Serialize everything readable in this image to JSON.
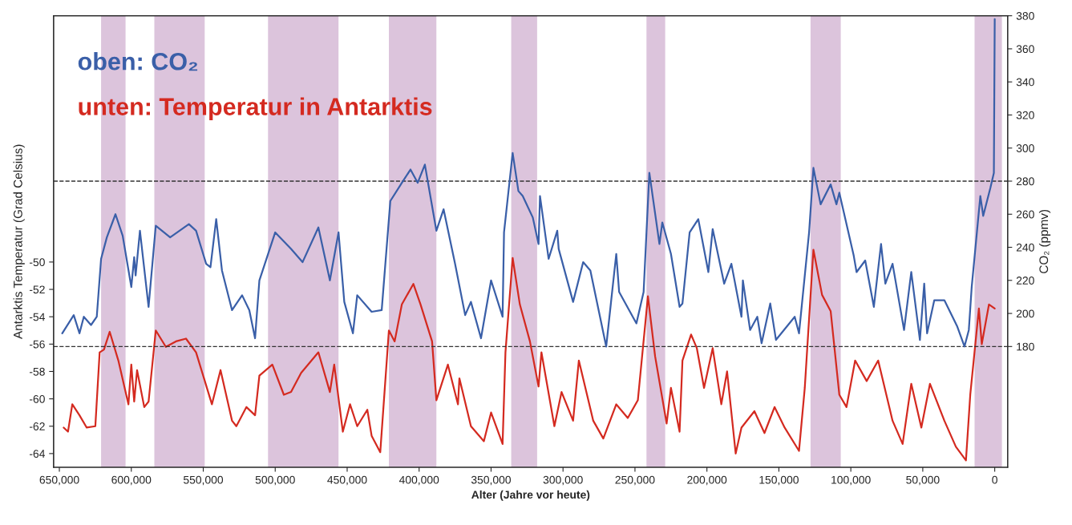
{
  "chart_data": {
    "type": "line",
    "title": "oben: CO₂",
    "subtitle": "unten: Temperatur in Antarktis",
    "xlabel": "Alter (Jahre vor heute)",
    "ylabel": "Antarktis Temperatur (Grad Celsius)",
    "y2label": "CO₂ (ppmv)",
    "xlim": [
      654000,
      -9000
    ],
    "xticks": [
      {
        "value": 650000,
        "label": "650,000"
      },
      {
        "value": 600000,
        "label": "600,000"
      },
      {
        "value": 550000,
        "label": "550,000"
      },
      {
        "value": 500000,
        "label": "500,000"
      },
      {
        "value": 450000,
        "label": "450,000"
      },
      {
        "value": 400000,
        "label": "400,000"
      },
      {
        "value": 350000,
        "label": "350,000"
      },
      {
        "value": 300000,
        "label": "300,000"
      },
      {
        "value": 250000,
        "label": "250,000"
      },
      {
        "value": 200000,
        "label": "200,000"
      },
      {
        "value": 150000,
        "label": "150,000"
      },
      {
        "value": 100000,
        "label": "100,000"
      },
      {
        "value": 50000,
        "label": "50,000"
      },
      0
    ],
    "ylim": [
      -65,
      -32
    ],
    "yticks": [
      -64,
      -62,
      -60,
      -58,
      -56,
      -54,
      -52,
      -50
    ],
    "y2lim": [
      107,
      380
    ],
    "y2ticks": [
      180,
      200,
      220,
      240,
      260,
      280,
      300,
      320,
      340,
      360,
      380
    ],
    "line_style": "solid",
    "grid": false,
    "legend": false,
    "series": [
      {
        "color": "#3a5fa8",
        "axis": "y2",
        "x": [
          648000,
          640000,
          636000,
          633000,
          628000,
          624000,
          621000,
          617000,
          611000,
          606000,
          600000,
          598000,
          597000,
          594000,
          588000,
          583000,
          573000,
          560000,
          555000,
          548000,
          545000,
          541000,
          537000,
          530000,
          523000,
          518000,
          514000,
          511000,
          500000,
          489000,
          481000,
          470000,
          462000,
          456000,
          452000,
          446000,
          443000,
          433000,
          426000,
          420000,
          412000,
          406000,
          401000,
          396000,
          388000,
          383000,
          375000,
          368000,
          364000,
          357000,
          350000,
          342000,
          341000,
          335000,
          331000,
          328000,
          321000,
          317000,
          316000,
          310000,
          304000,
          303000,
          293000,
          286000,
          281000,
          270000,
          263000,
          261000,
          249000,
          244000,
          240000,
          233000,
          231000,
          225000,
          219000,
          217000,
          212000,
          206000,
          199000,
          196000,
          188000,
          183000,
          176000,
          175000,
          170000,
          165000,
          162000,
          156000,
          152000,
          139000,
          136000,
          129000,
          126000,
          121000,
          114000,
          110000,
          108000,
          98000,
          96000,
          90000,
          84000,
          79000,
          76000,
          71000,
          63000,
          58000,
          52000,
          49000,
          47000,
          42000,
          35000,
          26000,
          21000,
          18000,
          16000,
          10000,
          8000,
          3000,
          600,
          0
        ],
        "values": [
          188,
          199,
          188,
          198,
          193,
          198,
          233,
          246,
          260,
          247,
          216,
          234,
          223,
          250,
          204,
          253,
          246,
          254,
          250,
          230,
          228,
          257,
          226,
          202,
          211,
          202,
          185,
          220,
          249,
          239,
          231,
          252,
          220,
          249,
          207,
          188,
          211,
          201,
          202,
          268,
          279,
          287,
          279,
          290,
          250,
          263,
          230,
          199,
          207,
          185,
          220,
          198,
          249,
          297,
          274,
          271,
          258,
          242,
          271,
          233,
          250,
          239,
          207,
          231,
          226,
          180,
          236,
          213,
          194,
          213,
          285,
          242,
          255,
          236,
          204,
          206,
          249,
          257,
          225,
          251,
          218,
          230,
          198,
          220,
          190,
          198,
          182,
          206,
          184,
          198,
          188,
          249,
          288,
          266,
          278,
          266,
          273,
          235,
          225,
          232,
          204,
          242,
          218,
          230,
          190,
          225,
          184,
          218,
          188,
          208,
          208,
          192,
          180,
          190,
          216,
          271,
          259,
          276,
          285,
          378
        ]
      },
      {
        "color": "#d42a20",
        "x": [
          647000,
          644000,
          641000,
          636000,
          631000,
          625000,
          622000,
          619000,
          615000,
          609000,
          602000,
          600000,
          598000,
          596000,
          591000,
          588000,
          583000,
          576000,
          569000,
          562000,
          555000,
          544000,
          538000,
          530000,
          527000,
          520000,
          514000,
          511000,
          502000,
          494000,
          489000,
          482000,
          470000,
          462000,
          459000,
          453000,
          448000,
          443000,
          436000,
          433000,
          427000,
          421000,
          417000,
          412000,
          404000,
          399000,
          391000,
          388000,
          380000,
          373000,
          372000,
          364000,
          355000,
          350000,
          342000,
          340000,
          335000,
          330000,
          323000,
          317000,
          315000,
          306000,
          301000,
          293000,
          289000,
          279000,
          272000,
          263000,
          255000,
          248000,
          241000,
          236000,
          228000,
          225000,
          219000,
          217000,
          211000,
          207000,
          202000,
          196000,
          190000,
          186000,
          180000,
          176000,
          167000,
          160000,
          153000,
          146000,
          136000,
          132000,
          126000,
          120000,
          114000,
          108000,
          103000,
          97000,
          89000,
          81000,
          71000,
          64000,
          58000,
          51000,
          45000,
          35000,
          27000,
          20000,
          17000,
          11000,
          9000,
          4000,
          0
        ],
        "values": [
          -62.1,
          -62.4,
          -60.4,
          -61.2,
          -62.1,
          -62.0,
          -56.6,
          -56.4,
          -55.1,
          -57.2,
          -60.4,
          -57.5,
          -60.2,
          -57.9,
          -60.6,
          -60.2,
          -55.0,
          -56.2,
          -55.8,
          -55.6,
          -56.6,
          -60.4,
          -57.9,
          -61.6,
          -62.0,
          -60.6,
          -61.2,
          -58.3,
          -57.5,
          -59.7,
          -59.5,
          -58.1,
          -56.6,
          -59.5,
          -57.5,
          -62.4,
          -60.4,
          -62.0,
          -60.8,
          -62.7,
          -63.9,
          -55.0,
          -55.8,
          -53.1,
          -51.6,
          -53.1,
          -55.8,
          -60.1,
          -57.5,
          -60.4,
          -58.5,
          -62.0,
          -63.1,
          -61.0,
          -63.3,
          -56.6,
          -49.7,
          -53.1,
          -55.8,
          -59.1,
          -56.6,
          -62.0,
          -59.5,
          -61.6,
          -57.2,
          -61.6,
          -62.9,
          -60.4,
          -61.4,
          -60.1,
          -52.5,
          -56.9,
          -61.8,
          -59.2,
          -62.4,
          -57.2,
          -55.3,
          -56.3,
          -59.2,
          -56.3,
          -60.4,
          -58.0,
          -64.0,
          -62.1,
          -60.9,
          -62.5,
          -60.6,
          -62.1,
          -63.8,
          -59.2,
          -49.1,
          -52.4,
          -53.6,
          -59.7,
          -60.6,
          -57.2,
          -58.7,
          -57.2,
          -61.6,
          -63.3,
          -58.9,
          -62.1,
          -58.9,
          -61.6,
          -63.5,
          -64.5,
          -59.7,
          -53.4,
          -56.0,
          -53.1,
          -53.4
        ]
      }
    ],
    "ref_lines": [
      {
        "axis": "y2",
        "value": 280,
        "color": "#333333",
        "line_style": "dashed"
      },
      {
        "axis": "y2",
        "value": 180,
        "color": "#333333",
        "line_style": "dashed"
      }
    ],
    "bands": [
      {
        "axis": "x",
        "from": 621000,
        "to": 604000,
        "color": "#dcc4dc"
      },
      {
        "axis": "x",
        "from": 584000,
        "to": 549000,
        "color": "#dcc4dc"
      },
      {
        "axis": "x",
        "from": 505000,
        "to": 456000,
        "color": "#dcc4dc"
      },
      {
        "axis": "x",
        "from": 421000,
        "to": 388000,
        "color": "#dcc4dc"
      },
      {
        "axis": "x",
        "from": 336000,
        "to": 318000,
        "color": "#dcc4dc"
      },
      {
        "axis": "x",
        "from": 242000,
        "to": 229000,
        "color": "#dcc4dc"
      },
      {
        "axis": "x",
        "from": 128000,
        "to": 107000,
        "color": "#dcc4dc"
      },
      {
        "axis": "x",
        "from": 14000,
        "to": -5000,
        "color": "#dcc4dc"
      }
    ]
  }
}
